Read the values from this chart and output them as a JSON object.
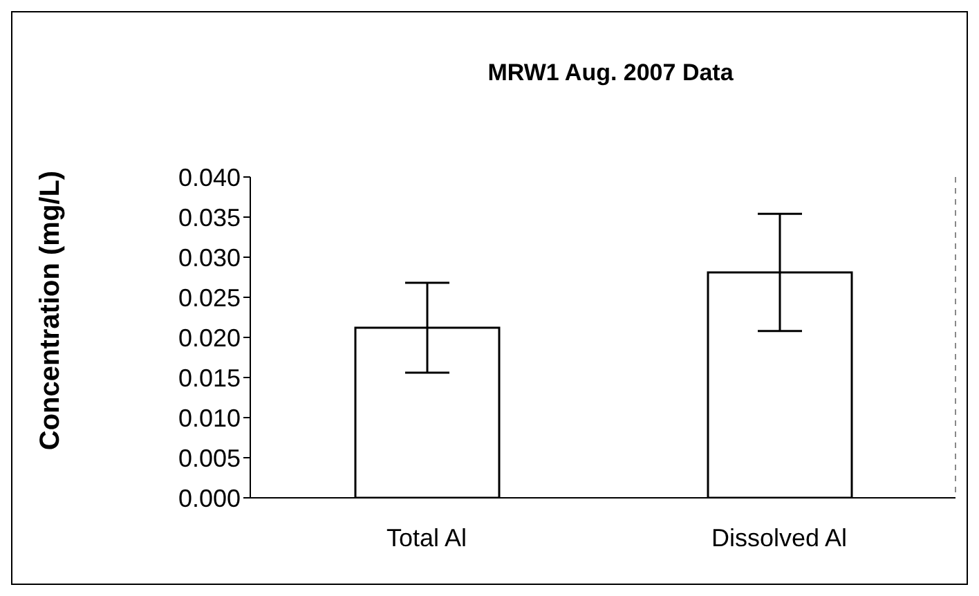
{
  "chart_data": {
    "type": "bar",
    "title": "MRW1 Aug. 2007 Data",
    "ylabel": "Concentration (mg/L)",
    "categories": [
      "Total Al",
      "Dissolved Al"
    ],
    "values": [
      0.0212,
      0.0281
    ],
    "errors": [
      0.0056,
      0.0073
    ],
    "color": "#ffffff",
    "ylim": [
      0,
      0.04
    ],
    "yticks": [
      {
        "value": 0,
        "label": "0.000"
      },
      {
        "value": 0.005,
        "label": "0.005"
      },
      {
        "value": 0.01,
        "label": "0.010"
      },
      {
        "value": 0.015,
        "label": "0.015"
      },
      {
        "value": 0.02,
        "label": "0.020"
      },
      {
        "value": 0.025,
        "label": "0.025"
      },
      {
        "value": 0.03,
        "label": "0.030"
      },
      {
        "value": 0.035,
        "label": "0.035"
      },
      {
        "value": 0.04,
        "label": "0.040"
      }
    ],
    "grid": false,
    "legend": false
  }
}
